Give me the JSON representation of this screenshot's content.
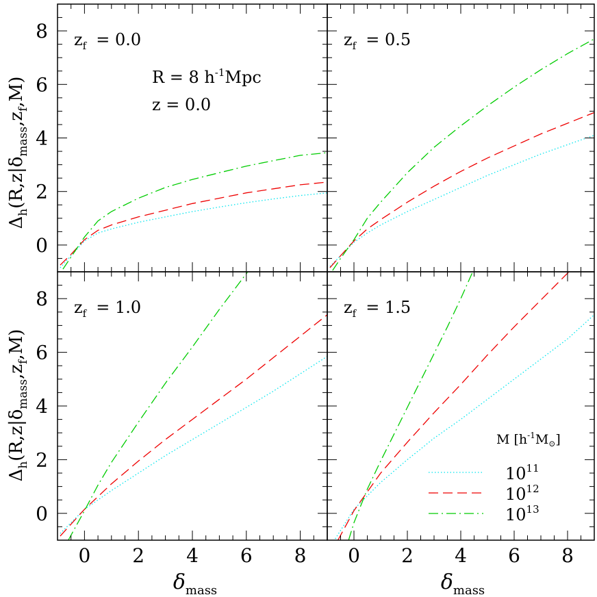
{
  "figure": {
    "ylabel": {
      "main": "Δ",
      "sub": "h",
      "rest1": "(R,z|δ",
      "sub2": "mass",
      "rest2": ",z",
      "sub3": "f",
      "rest3": ",M)"
    },
    "xlabel": {
      "main": "δ",
      "sub": "mass"
    },
    "annotation": {
      "r_text": "R = 8 h",
      "r_sup": "-1",
      "r_unit": "Mpc",
      "z_text": "z = 0.0"
    },
    "legend": {
      "title": "M [h",
      "title_sup": "-1",
      "title_unit": "M",
      "title_sub": "⊙",
      "title_end": "]",
      "entries": [
        {
          "base": "10",
          "exp": "11",
          "color": "#00e5ee",
          "dash": "dotted"
        },
        {
          "base": "10",
          "exp": "12",
          "color": "#ee0000",
          "dash": "dashed"
        },
        {
          "base": "10",
          "exp": "13",
          "color": "#00cc00",
          "dash": "dashdot"
        }
      ]
    }
  },
  "chart_data": [
    {
      "type": "line",
      "panel_label": {
        "main": "z",
        "sub": "f",
        "value": "= 0.0"
      },
      "xlim": [
        -1,
        9
      ],
      "ylim": [
        -1,
        9
      ],
      "x_ticks": [
        "0",
        "2",
        "4",
        "6",
        "8"
      ],
      "y_ticks": [
        "0",
        "2",
        "4",
        "6",
        "8"
      ],
      "series": [
        {
          "color": "#00e5ee",
          "dash": "dotted",
          "x": [
            -0.9,
            -0.5,
            0,
            0.5,
            1,
            2,
            3,
            4,
            5,
            6,
            7,
            8,
            9
          ],
          "y": [
            -0.85,
            -0.4,
            0.15,
            0.45,
            0.6,
            0.85,
            1.05,
            1.25,
            1.42,
            1.58,
            1.72,
            1.85,
            1.95
          ]
        },
        {
          "color": "#ee0000",
          "dash": "dashed",
          "x": [
            -0.9,
            -0.5,
            0,
            0.5,
            1,
            2,
            3,
            4,
            5,
            6,
            7,
            8,
            9
          ],
          "y": [
            -0.75,
            -0.35,
            0.2,
            0.55,
            0.75,
            1.05,
            1.3,
            1.55,
            1.75,
            1.95,
            2.1,
            2.25,
            2.35
          ]
        },
        {
          "color": "#00cc00",
          "dash": "dashdot",
          "x": [
            -0.8,
            -0.5,
            0,
            0.5,
            1,
            2,
            3,
            4,
            5,
            6,
            7,
            8,
            9
          ],
          "y": [
            -0.9,
            -0.45,
            0.3,
            0.9,
            1.25,
            1.75,
            2.15,
            2.45,
            2.7,
            2.95,
            3.15,
            3.35,
            3.45
          ]
        }
      ]
    },
    {
      "type": "line",
      "panel_label": {
        "main": "z",
        "sub": "f",
        "value": "= 0.5"
      },
      "xlim": [
        -1,
        9
      ],
      "ylim": [
        -1,
        9
      ],
      "x_ticks": [
        "0",
        "2",
        "4",
        "6",
        "8"
      ],
      "y_ticks": [
        "0",
        "2",
        "4",
        "6",
        "8"
      ],
      "series": [
        {
          "color": "#00e5ee",
          "dash": "dotted",
          "x": [
            -0.9,
            -0.5,
            0,
            0.5,
            1,
            2,
            3,
            4,
            5,
            6,
            7,
            8,
            9
          ],
          "y": [
            -0.8,
            -0.4,
            0.1,
            0.45,
            0.75,
            1.25,
            1.7,
            2.15,
            2.6,
            3.0,
            3.4,
            3.75,
            4.1
          ]
        },
        {
          "color": "#ee0000",
          "dash": "dashed",
          "x": [
            -0.9,
            -0.5,
            0,
            0.5,
            1,
            2,
            3,
            4,
            5,
            6,
            7,
            8,
            9
          ],
          "y": [
            -0.85,
            -0.4,
            0.15,
            0.6,
            0.95,
            1.6,
            2.2,
            2.75,
            3.25,
            3.7,
            4.15,
            4.55,
            4.95
          ]
        },
        {
          "color": "#00cc00",
          "dash": "dashdot",
          "x": [
            -0.8,
            -0.5,
            0,
            0.5,
            1,
            2,
            3,
            4,
            5,
            6,
            7,
            8,
            9
          ],
          "y": [
            -0.95,
            -0.5,
            0.2,
            1.0,
            1.6,
            2.7,
            3.65,
            4.45,
            5.2,
            5.9,
            6.55,
            7.15,
            7.7
          ]
        }
      ]
    },
    {
      "type": "line",
      "panel_label": {
        "main": "z",
        "sub": "f",
        "value": "= 1.0"
      },
      "xlim": [
        -1,
        9
      ],
      "ylim": [
        -1,
        9
      ],
      "x_ticks": [
        "0",
        "2",
        "4",
        "6",
        "8"
      ],
      "y_ticks": [
        "0",
        "2",
        "4",
        "6",
        "8"
      ],
      "series": [
        {
          "color": "#00e5ee",
          "dash": "dotted",
          "x": [
            -0.9,
            0,
            1,
            2,
            3,
            4,
            5,
            6,
            7,
            8,
            9
          ],
          "y": [
            -0.75,
            0.15,
            0.85,
            1.5,
            2.15,
            2.75,
            3.35,
            3.95,
            4.55,
            5.2,
            5.85
          ]
        },
        {
          "color": "#ee0000",
          "dash": "dashed",
          "x": [
            -0.9,
            0,
            1,
            2,
            3,
            4,
            5,
            6,
            7,
            8,
            9
          ],
          "y": [
            -0.85,
            0.15,
            1.1,
            1.95,
            2.75,
            3.5,
            4.25,
            5.0,
            5.8,
            6.6,
            7.4
          ]
        },
        {
          "color": "#00cc00",
          "dash": "dashdot",
          "x": [
            -0.6,
            0,
            0.5,
            1,
            2,
            3,
            4,
            5,
            6.05
          ],
          "y": [
            -1.0,
            0.1,
            1.05,
            1.9,
            3.4,
            4.85,
            6.2,
            7.6,
            9.0
          ]
        }
      ]
    },
    {
      "type": "line",
      "panel_label": {
        "main": "z",
        "sub": "f",
        "value": "= 1.5"
      },
      "xlim": [
        -1,
        9
      ],
      "ylim": [
        -1,
        9
      ],
      "x_ticks": [
        "0",
        "2",
        "4",
        "6",
        "8"
      ],
      "y_ticks": [
        "0",
        "2",
        "4",
        "6",
        "8"
      ],
      "series": [
        {
          "color": "#00e5ee",
          "dash": "dotted",
          "x": [
            -0.7,
            0,
            1,
            2,
            3,
            4,
            5,
            6,
            7,
            8,
            9
          ],
          "y": [
            -0.95,
            0.15,
            1.15,
            2.0,
            2.8,
            3.5,
            4.25,
            5.0,
            5.75,
            6.5,
            7.4
          ]
        },
        {
          "color": "#ee0000",
          "dash": "dashed",
          "x": [
            -0.6,
            0,
            1,
            2,
            3,
            4,
            5,
            6,
            7,
            8.05
          ],
          "y": [
            -1.0,
            0.1,
            1.5,
            2.65,
            3.75,
            4.8,
            5.9,
            6.95,
            7.95,
            9.0
          ]
        },
        {
          "color": "#00cc00",
          "dash": "dashdot",
          "x": [
            -0.2,
            0,
            0.5,
            1,
            1.5,
            2,
            2.5,
            3,
            3.5,
            4,
            4.45
          ],
          "y": [
            -1.0,
            -0.35,
            0.9,
            1.95,
            2.95,
            3.95,
            4.95,
            5.95,
            6.95,
            8.0,
            9.0
          ]
        }
      ]
    }
  ]
}
